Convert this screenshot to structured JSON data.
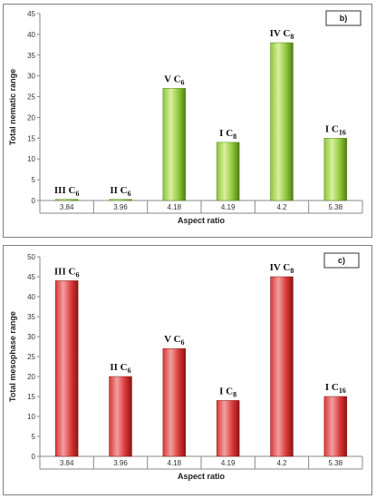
{
  "chart_data": [
    {
      "id": "b",
      "type": "bar",
      "panel_label": "b)",
      "xlabel": "Aspect ratio",
      "ylabel": "Total nematic range",
      "ylim": [
        0,
        45
      ],
      "yticks": [
        0,
        5,
        10,
        15,
        20,
        25,
        30,
        35,
        40,
        45
      ],
      "categories": [
        "3.84",
        "3.96",
        "4.18",
        "4.19",
        "4.2",
        "5.38"
      ],
      "values": [
        0,
        0,
        27,
        14,
        38,
        15
      ],
      "bar_labels": [
        {
          "main": "III C",
          "sub": "6"
        },
        {
          "main": "II C",
          "sub": "6"
        },
        {
          "main": "V C",
          "sub": "6"
        },
        {
          "main": "I C",
          "sub": "8"
        },
        {
          "main": "IV C",
          "sub": "8"
        },
        {
          "main": "I C",
          "sub": "16"
        }
      ],
      "colors": {
        "light": "#d9f0a0",
        "mid": "#8fc63a",
        "dark": "#4e7f12"
      },
      "grid": false,
      "legend": "none"
    },
    {
      "id": "c",
      "type": "bar",
      "panel_label": "c)",
      "xlabel": "Aspect ratio",
      "ylabel": "Total mesophase range",
      "ylim": [
        0,
        50
      ],
      "yticks": [
        0,
        5,
        10,
        15,
        20,
        25,
        30,
        35,
        40,
        45,
        50
      ],
      "categories": [
        "3.84",
        "3.96",
        "4.18",
        "4.19",
        "4.2",
        "5.38"
      ],
      "values": [
        44,
        20,
        27,
        14,
        45,
        15
      ],
      "bar_labels": [
        {
          "main": "III C",
          "sub": "6"
        },
        {
          "main": "II C",
          "sub": "6"
        },
        {
          "main": "V C",
          "sub": "6"
        },
        {
          "main": "I C",
          "sub": "8"
        },
        {
          "main": "IV C",
          "sub": "8"
        },
        {
          "main": "I C",
          "sub": "16"
        }
      ],
      "colors": {
        "light": "#f2a0a0",
        "mid": "#d93838",
        "dark": "#8e1414"
      },
      "grid": false,
      "legend": "none"
    }
  ]
}
